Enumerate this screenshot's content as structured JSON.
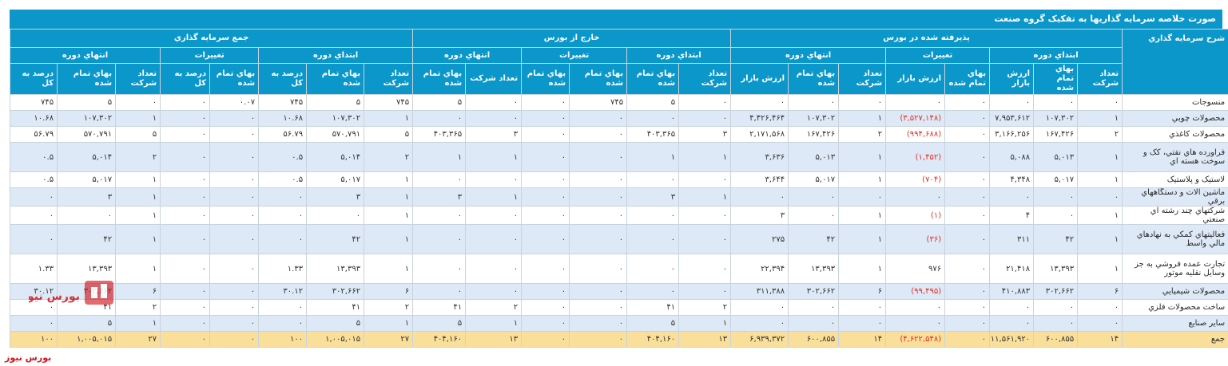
{
  "title": "صورت خلاصه سرمايه گذاريها به تفکيک گروه صنعت",
  "headers": {
    "desc": "شرح سرمايه گذاري",
    "groups": [
      "پذيرفته شده در بورس",
      "خارج از بورس",
      "جمع سرمايه گذاري"
    ],
    "sub_start": "ابتداي دوره",
    "sub_change": "تغييرات",
    "sub_end": "انتهاي دوره",
    "count": "تعداد شرکت",
    "cost": "بهاي تمام شده",
    "market": "ارزش بازار",
    "market_change": "ارزش بازار",
    "pct": "درصد به کل"
  },
  "rows": [
    {
      "name": "منسوجات",
      "v": [
        "۰",
        "۰",
        "۰",
        "۰",
        "۰",
        "۰",
        "۰",
        "۰",
        "۰",
        "۵",
        "۷۴۵",
        "۰",
        "۰",
        "۵",
        "۷۴۵",
        "۵",
        "۷۴۵",
        "۰.۰۷",
        "۰",
        "۰",
        "۵",
        "۷۴۵",
        "۰.۰۷"
      ]
    },
    {
      "name": "محصولات چوبي",
      "v": [
        "۱",
        "۱۰۷,۳۰۲",
        "۷,۹۵۳,۶۱۲",
        "۰",
        "(۳,۵۲۷,۱۴۸)",
        "۱",
        "۱۰۷,۳۰۲",
        "۴,۴۲۶,۴۶۴",
        "۰",
        "۰",
        "۰",
        "۰",
        "۰",
        "۰",
        "۱",
        "۱۰۷,۳۰۲",
        "۱۰.۶۸",
        "۰",
        "۰",
        "۱",
        "۱۰۷,۳۰۲",
        "۱۰.۶۸"
      ]
    },
    {
      "name": "محصولات کاغذي",
      "v": [
        "۲",
        "۱۶۷,۴۲۶",
        "۳,۱۶۶,۲۵۶",
        "۰",
        "(۹۹۴,۶۸۸)",
        "۲",
        "۱۶۷,۴۲۶",
        "۲,۱۷۱,۵۶۸",
        "۳",
        "۴۰۳,۳۶۵",
        "۰",
        "۰",
        "۳",
        "۴۰۳,۳۶۵",
        "۵",
        "۵۷۰,۷۹۱",
        "۵۶.۷۹",
        "۰",
        "۰",
        "۵",
        "۵۷۰,۷۹۱",
        "۵۶.۷۹"
      ]
    },
    {
      "name": "فراورده هاي نفتي، کک و سوخت هسته اي",
      "v": [
        "۱",
        "۵,۰۱۳",
        "۵,۰۸۸",
        "۰",
        "(۱,۴۵۲)",
        "۱",
        "۵,۰۱۳",
        "۳,۶۳۶",
        "۱",
        "۱",
        "۰",
        "۰",
        "۱",
        "۱",
        "۲",
        "۵,۰۱۴",
        "۰.۵",
        "۰",
        "۰",
        "۲",
        "۵,۰۱۴",
        "۰.۵"
      ]
    },
    {
      "name": "لاستيک و پلاستيک",
      "v": [
        "۱",
        "۵,۰۱۷",
        "۴,۳۴۸",
        "۰",
        "(۷۰۴)",
        "۱",
        "۵,۰۱۷",
        "۳,۶۴۴",
        "۰",
        "۰",
        "۰",
        "۰",
        "۰",
        "۰",
        "۱",
        "۵,۰۱۷",
        "۰.۵",
        "۰",
        "۰",
        "۱",
        "۵,۰۱۷",
        "۰.۵"
      ]
    },
    {
      "name": "ماشين آلات و دستگاههاي برقي",
      "v": [
        "۰",
        "۰",
        "۰",
        "۰",
        "۰",
        "۰",
        "۰",
        "۰",
        "۱",
        "۳",
        "۰",
        "۰",
        "۱",
        "۳",
        "۱",
        "۳",
        "۰",
        "۰",
        "۰",
        "۱",
        "۳",
        "۰"
      ]
    },
    {
      "name": "شرکتهاي چند رشته اي صنعتي",
      "v": [
        "۱",
        "۰",
        "۴",
        "۰",
        "(۱)",
        "۱",
        "۰",
        "۳",
        "۰",
        "۰",
        "۰",
        "۰",
        "۰",
        "۰",
        "۱",
        "۰",
        "۰",
        "۰",
        "۰",
        "۱",
        "۰",
        "۰"
      ]
    },
    {
      "name": "فعاليتهاي کمکي به نهادهاي مالي واسط",
      "v": [
        "۱",
        "۴۲",
        "۳۱۱",
        "۰",
        "(۳۶)",
        "۱",
        "۴۲",
        "۲۷۵",
        "۰",
        "۰",
        "۰",
        "۰",
        "۰",
        "۰",
        "۱",
        "۴۲",
        "۰",
        "۰",
        "۰",
        "۱",
        "۴۲",
        "۰"
      ]
    },
    {
      "name": "تجارت عمده فروشي به جز وسايل نقليه موتور",
      "v": [
        "۱",
        "۱۳,۳۹۳",
        "۲۱,۴۱۸",
        "۰",
        "۹۷۶",
        "۱",
        "۱۳,۳۹۳",
        "۲۲,۳۹۴",
        "۰",
        "۰",
        "۰",
        "۰",
        "۰",
        "۰",
        "۱",
        "۱۳,۳۹۳",
        "۱.۳۳",
        "۰",
        "۰",
        "۱",
        "۱۳,۳۹۳",
        "۱.۳۳"
      ]
    },
    {
      "name": "محصولات شيميايي",
      "v": [
        "۶",
        "۳۰۲,۶۶۲",
        "۴۱۰,۸۸۳",
        "۰",
        "(۹۹,۴۹۵)",
        "۶",
        "۳۰۲,۶۶۲",
        "۳۱۱,۳۸۸",
        "۰",
        "۰",
        "۰",
        "۰",
        "۰",
        "۰",
        "۶",
        "۳۰۲,۶۶۲",
        "۳۰.۱۲",
        "۰",
        "۰",
        "۶",
        "۳۰۲,۶۶۲",
        "۳۰.۱۲"
      ]
    },
    {
      "name": "ساخت محصولات فلزي",
      "v": [
        "۰",
        "۰",
        "۰",
        "۰",
        "۰",
        "۰",
        "۰",
        "۰",
        "۲",
        "۴۱",
        "۰",
        "۰",
        "۲",
        "۴۱",
        "۲",
        "۴۱",
        "۰",
        "۰",
        "۰",
        "۲",
        "۴۱",
        "۰"
      ]
    },
    {
      "name": "ساير صنايع",
      "v": [
        "۰",
        "۰",
        "۰",
        "۰",
        "۰",
        "۰",
        "۰",
        "۰",
        "۱",
        "۵",
        "۰",
        "۰",
        "۱",
        "۵",
        "۱",
        "۵",
        "۰",
        "۰",
        "۰",
        "۱",
        "۵",
        "۰"
      ]
    },
    {
      "name": "جمع",
      "v": [
        "۱۴",
        "۶۰۰,۸۵۵",
        "۱۱,۵۶۱,۹۲۰",
        "۰",
        "(۴,۶۲۲,۵۴۸)",
        "۱۴",
        "۶۰۰,۸۵۵",
        "۶,۹۳۹,۳۷۲",
        "۱۳",
        "۴۰۴,۱۶۰",
        "۰",
        "۰",
        "۱۳",
        "۴۰۴,۱۶۰",
        "۲۷",
        "۱,۰۰۵,۰۱۵",
        "۱۰۰",
        "۰",
        "۰",
        "۲۷",
        "۱,۰۰۵,۰۱۵",
        "۱۰۰"
      ]
    }
  ],
  "watermark_text": "بورس نیوز",
  "footer_logo": "بورس نیوز",
  "colors": {
    "header_bg": "#0b97c9",
    "row_alt": "#dde9f6",
    "total_bg": "#f9df99",
    "negative": "#e0312a",
    "brand": "#d1141c"
  }
}
